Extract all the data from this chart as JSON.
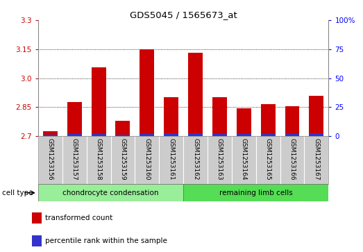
{
  "title": "GDS5045 / 1565673_at",
  "categories": [
    "GSM1253156",
    "GSM1253157",
    "GSM1253158",
    "GSM1253159",
    "GSM1253160",
    "GSM1253161",
    "GSM1253162",
    "GSM1253163",
    "GSM1253164",
    "GSM1253165",
    "GSM1253166",
    "GSM1253167"
  ],
  "red_values": [
    2.725,
    2.875,
    3.055,
    2.78,
    3.15,
    2.9,
    3.13,
    2.9,
    2.845,
    2.865,
    2.855,
    2.91
  ],
  "blue_values": [
    0.008,
    0.012,
    0.01,
    0.009,
    0.012,
    0.013,
    0.014,
    0.012,
    0.01,
    0.012,
    0.01,
    0.013
  ],
  "ymin": 2.7,
  "ymax": 3.3,
  "yticks_left": [
    2.7,
    2.85,
    3.0,
    3.15,
    3.3
  ],
  "yticks_right_vals": [
    0,
    25,
    50,
    75,
    100
  ],
  "group1_label": "chondrocyte condensation",
  "group1_count": 6,
  "group2_label": "remaining limb cells",
  "group2_count": 6,
  "cell_type_label": "cell type",
  "legend_red": "transformed count",
  "legend_blue": "percentile rank within the sample",
  "bar_red_color": "#cc0000",
  "bar_blue_color": "#3333cc",
  "group1_color": "#99ee99",
  "group2_color": "#55dd55",
  "label_area_color": "#cccccc"
}
